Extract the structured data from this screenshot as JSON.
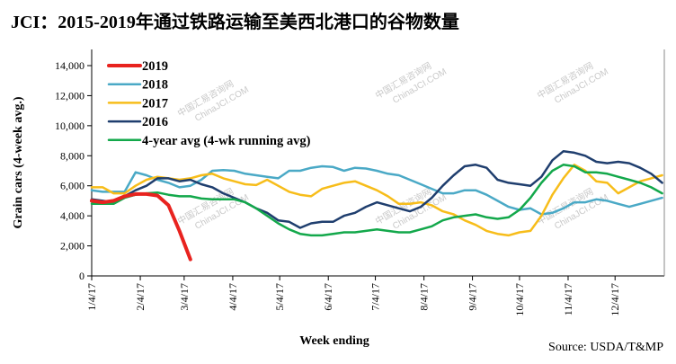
{
  "title": "JCI：2015-2019年通过铁路运输至美西北港口的谷物数量",
  "source": "Source: USDA/T&MP",
  "watermark": [
    "中国汇易咨询网",
    "ChinaJCI.COM"
  ],
  "chart_data": {
    "type": "line",
    "title": "JCI：2015-2019年通过铁路运输至美西北港口的谷物数量",
    "xlabel": "Week ending",
    "ylabel": "Grain cars (4-week avg.)",
    "ylim": [
      0,
      14000
    ],
    "yticks": [
      0,
      2000,
      4000,
      6000,
      8000,
      10000,
      12000,
      14000
    ],
    "ytick_labels": [
      "0",
      "2,000",
      "4,000",
      "6,000",
      "8,000",
      "10,000",
      "12,000",
      "14,000"
    ],
    "x_unit": "weeks since 1/4",
    "xlim": [
      0,
      52.2
    ],
    "xticks": [
      {
        "label": "1/4/17",
        "week": 0
      },
      {
        "label": "2/4/17",
        "week": 4.43
      },
      {
        "label": "3/4/17",
        "week": 8.43
      },
      {
        "label": "4/4/17",
        "week": 12.86
      },
      {
        "label": "5/4/17",
        "week": 17.14
      },
      {
        "label": "6/4/17",
        "week": 21.57
      },
      {
        "label": "7/4/17",
        "week": 25.86
      },
      {
        "label": "8/4/17",
        "week": 30.29
      },
      {
        "label": "9/4/17",
        "week": 34.71
      },
      {
        "label": "10/4/17",
        "week": 39.0
      },
      {
        "label": "11/4/17",
        "week": 43.43
      },
      {
        "label": "12/4/17",
        "week": 47.71
      }
    ],
    "grid": false,
    "legend_position": "top-left",
    "series": [
      {
        "name": "2019",
        "color": "#e8231f",
        "width": 4,
        "values": [
          5000,
          4900,
          5000,
          5300,
          5450,
          5450,
          5350,
          4700,
          3000,
          1100
        ]
      },
      {
        "name": "2018",
        "color": "#4aa9c6",
        "width": 2.5,
        "values": [
          5700,
          5600,
          5600,
          5600,
          6900,
          6700,
          6400,
          6200,
          5900,
          6000,
          6400,
          7000,
          7050,
          7000,
          6800,
          6700,
          6600,
          6500,
          7000,
          7000,
          7200,
          7300,
          7250,
          7000,
          7200,
          7150,
          7000,
          6800,
          6700,
          6400,
          6100,
          5800,
          5500,
          5500,
          5700,
          5700,
          5400,
          5000,
          4600,
          4400,
          4500,
          4100,
          4200,
          4500,
          4900,
          4900,
          5100,
          5000,
          4800,
          4600,
          4800,
          5000,
          5200
        ]
      },
      {
        "name": "2017",
        "color": "#f7bd1a",
        "width": 2.5,
        "values": [
          5900,
          5900,
          5500,
          5500,
          6000,
          6400,
          6600,
          6500,
          6400,
          6500,
          6700,
          6800,
          6500,
          6300,
          6100,
          6050,
          6400,
          6000,
          5600,
          5400,
          5300,
          5800,
          6000,
          6200,
          6300,
          6000,
          5700,
          5300,
          4800,
          4800,
          4900,
          4700,
          4300,
          4100,
          3700,
          3400,
          3000,
          2800,
          2700,
          2900,
          3000,
          4000,
          5400,
          6500,
          7400,
          7000,
          6300,
          6200,
          5500,
          5900,
          6300,
          6500,
          6700
        ]
      },
      {
        "name": "2016",
        "color": "#1f3e6e",
        "width": 2.5,
        "values": [
          5100,
          5000,
          4900,
          5300,
          5700,
          6000,
          6500,
          6500,
          6300,
          6400,
          6100,
          5900,
          5500,
          5200,
          4900,
          4500,
          4200,
          3700,
          3600,
          3200,
          3500,
          3600,
          3600,
          4000,
          4200,
          4600,
          4900,
          4700,
          4500,
          4300,
          4600,
          5200,
          6000,
          6700,
          7300,
          7400,
          7200,
          6400,
          6200,
          6100,
          6000,
          6600,
          7700,
          8300,
          8200,
          8000,
          7600,
          7500,
          7600,
          7500,
          7200,
          6800,
          6200
        ]
      },
      {
        "name": "4-year avg (4-wk running avg)",
        "color": "#13a84b",
        "width": 2.5,
        "values": [
          4800,
          4800,
          4800,
          5200,
          5400,
          5500,
          5550,
          5400,
          5300,
          5300,
          5150,
          5100,
          5100,
          5100,
          4900,
          4500,
          4000,
          3500,
          3100,
          2800,
          2700,
          2700,
          2800,
          2900,
          2900,
          3000,
          3100,
          3000,
          2900,
          2900,
          3100,
          3300,
          3700,
          3900,
          4000,
          4100,
          3900,
          3800,
          3900,
          4400,
          5200,
          6200,
          7000,
          7400,
          7300,
          6900,
          6900,
          6800,
          6600,
          6400,
          6200,
          5900,
          5500
        ]
      }
    ]
  }
}
